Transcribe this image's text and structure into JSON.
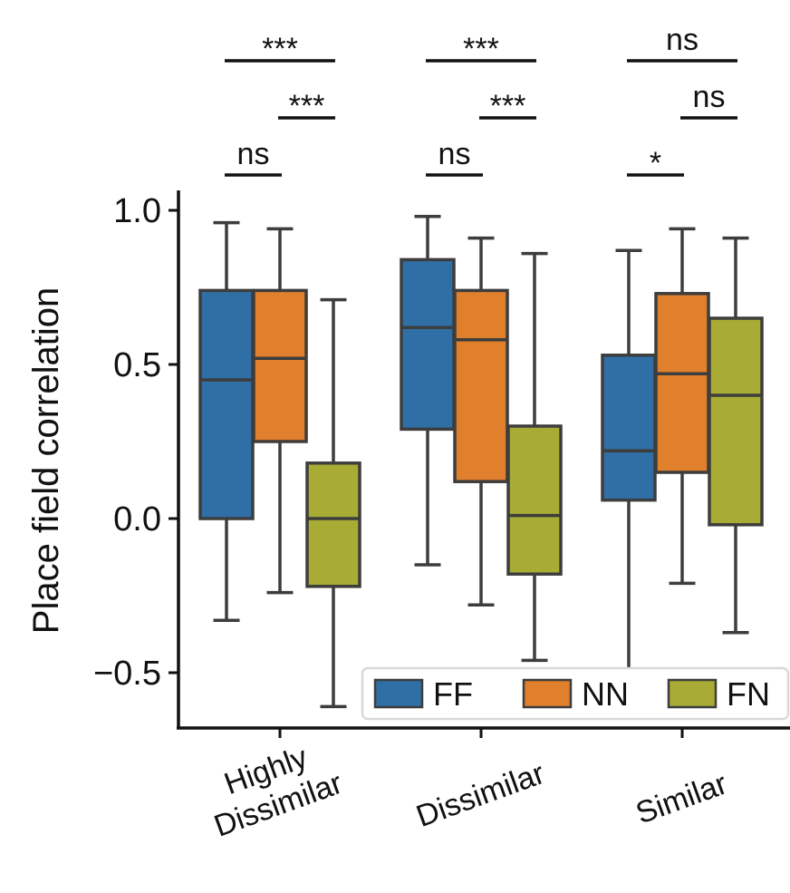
{
  "chart_data": {
    "type": "box",
    "ylabel": "Place field correlation",
    "xlabel": "",
    "ylim": [
      -0.68,
      1.06
    ],
    "yticks": [
      {
        "value": 1.0,
        "label": "1.0"
      },
      {
        "value": 0.5,
        "label": "0.5"
      },
      {
        "value": 0.0,
        "label": "0.0"
      },
      {
        "value": -0.5,
        "label": "−0.5"
      }
    ],
    "categories": [
      {
        "lines": [
          "Highly",
          "Dissimilar"
        ]
      },
      {
        "lines": [
          "Dissimilar"
        ]
      },
      {
        "lines": [
          "Similar"
        ]
      }
    ],
    "legend": {
      "placement": "lower-right",
      "frame": true
    },
    "series": [
      {
        "name": "FF",
        "color": "#2f6fa6",
        "boxes": [
          {
            "whislo": -0.33,
            "q1": 0.0,
            "med": 0.45,
            "q3": 0.74,
            "whishi": 0.96
          },
          {
            "whislo": -0.15,
            "q1": 0.29,
            "med": 0.62,
            "q3": 0.84,
            "whishi": 0.98
          },
          {
            "whislo": -0.49,
            "q1": 0.06,
            "med": 0.22,
            "q3": 0.53,
            "whishi": 0.87
          }
        ]
      },
      {
        "name": "NN",
        "color": "#e07f2c",
        "boxes": [
          {
            "whislo": -0.24,
            "q1": 0.25,
            "med": 0.52,
            "q3": 0.74,
            "whishi": 0.94
          },
          {
            "whislo": -0.28,
            "q1": 0.12,
            "med": 0.58,
            "q3": 0.74,
            "whishi": 0.91
          },
          {
            "whislo": -0.21,
            "q1": 0.15,
            "med": 0.47,
            "q3": 0.73,
            "whishi": 0.94
          }
        ]
      },
      {
        "name": "FN",
        "color": "#a8ac35",
        "boxes": [
          {
            "whislo": -0.61,
            "q1": -0.22,
            "med": 0.0,
            "q3": 0.18,
            "whishi": 0.71
          },
          {
            "whislo": -0.46,
            "q1": -0.18,
            "med": 0.01,
            "q3": 0.3,
            "whishi": 0.86
          },
          {
            "whislo": -0.37,
            "q1": -0.02,
            "med": 0.4,
            "q3": 0.65,
            "whishi": 0.91
          }
        ]
      }
    ],
    "significance": [
      {
        "category": 0,
        "from": "FF",
        "to": "FN",
        "label": "***",
        "tier": 3
      },
      {
        "category": 0,
        "from": "NN",
        "to": "FN",
        "label": "***",
        "tier": 2
      },
      {
        "category": 0,
        "from": "FF",
        "to": "NN",
        "label": "ns",
        "tier": 1
      },
      {
        "category": 1,
        "from": "FF",
        "to": "FN",
        "label": "***",
        "tier": 3
      },
      {
        "category": 1,
        "from": "NN",
        "to": "FN",
        "label": "***",
        "tier": 2
      },
      {
        "category": 1,
        "from": "FF",
        "to": "NN",
        "label": "ns",
        "tier": 1
      },
      {
        "category": 2,
        "from": "FF",
        "to": "FN",
        "label": "ns",
        "tier": 3
      },
      {
        "category": 2,
        "from": "NN",
        "to": "FN",
        "label": "ns",
        "tier": 2
      },
      {
        "category": 2,
        "from": "FF",
        "to": "NN",
        "label": "*",
        "tier": 1
      }
    ]
  }
}
